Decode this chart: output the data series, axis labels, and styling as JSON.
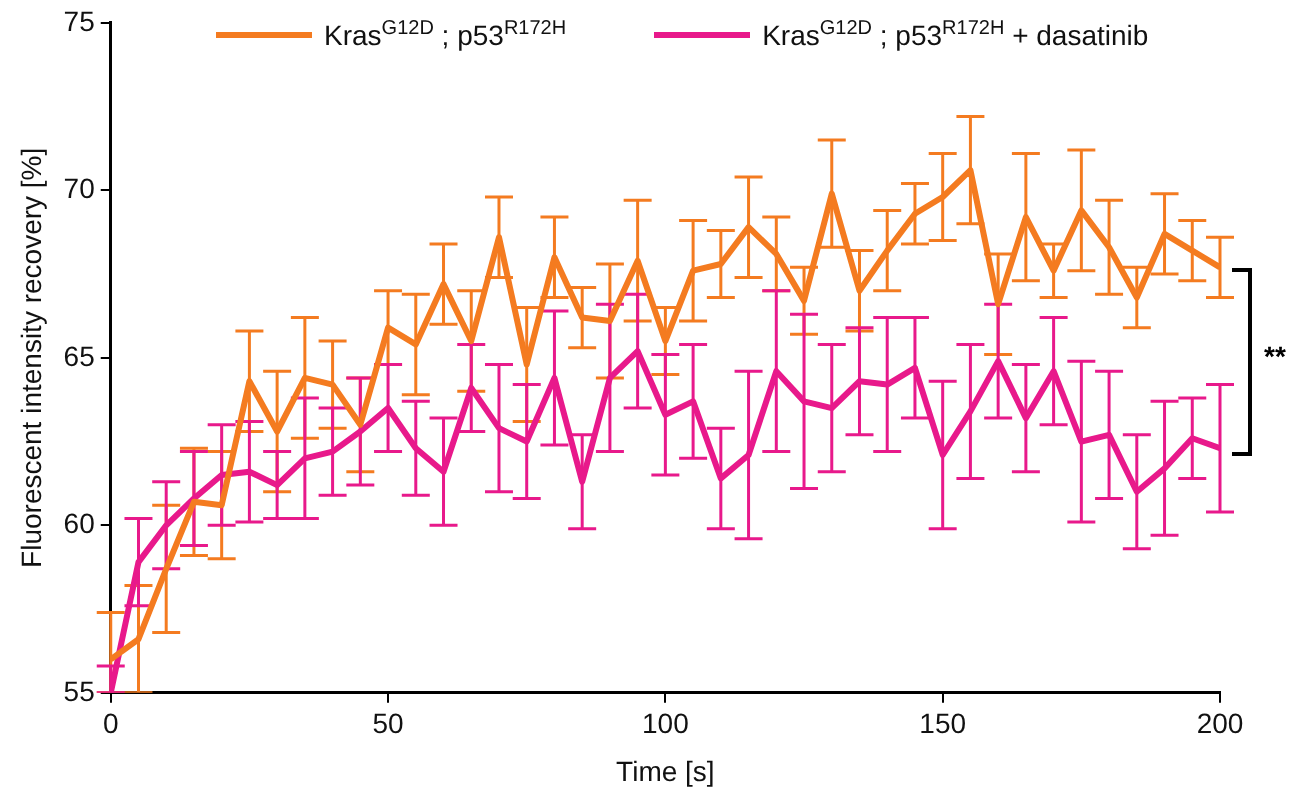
{
  "chart_data": {
    "type": "line",
    "xlabel": "Time [s]",
    "ylabel": "Fluorescent intensity recovery [%]",
    "x": [
      0,
      5,
      10,
      15,
      20,
      25,
      30,
      35,
      40,
      45,
      50,
      55,
      60,
      65,
      70,
      75,
      80,
      85,
      90,
      95,
      100,
      105,
      110,
      115,
      120,
      125,
      130,
      135,
      140,
      145,
      150,
      155,
      160,
      165,
      170,
      175,
      180,
      185,
      190,
      195,
      200
    ],
    "series": [
      {
        "name": "Kras$^{G12D}$ ; p53$^{R172H}$",
        "color": "#f47b20",
        "values": [
          56.0,
          56.6,
          58.7,
          60.7,
          60.6,
          64.3,
          62.8,
          64.4,
          64.2,
          63.0,
          65.9,
          65.4,
          67.2,
          65.5,
          68.6,
          64.8,
          68.0,
          66.2,
          66.1,
          67.9,
          65.5,
          67.6,
          67.8,
          68.9,
          68.1,
          66.7,
          69.9,
          67.0,
          68.2,
          69.3,
          69.8,
          70.6,
          66.6,
          69.2,
          67.6,
          69.4,
          68.3,
          66.8,
          68.7,
          68.2,
          67.7
        ],
        "errors": [
          [
            55,
            57.4
          ],
          1.6,
          1.9,
          1.6,
          1.6,
          1.5,
          1.8,
          1.8,
          1.3,
          1.4,
          1.1,
          1.5,
          1.2,
          1.5,
          1.2,
          1.7,
          1.2,
          0.9,
          1.7,
          1.8,
          1.0,
          1.5,
          1.0,
          1.5,
          1.1,
          1.0,
          1.6,
          1.2,
          1.2,
          0.9,
          1.3,
          1.6,
          1.5,
          1.9,
          0.8,
          1.8,
          1.4,
          0.9,
          1.2,
          0.9,
          0.9
        ]
      },
      {
        "name": "Kras$^{G12D}$ ; p53$^{R172H}$ + dasatinib",
        "color": "#e8198b",
        "values": [
          55.0,
          58.9,
          60.0,
          60.8,
          61.5,
          61.6,
          61.2,
          62.0,
          62.2,
          62.8,
          63.5,
          62.3,
          61.6,
          64.1,
          62.9,
          62.5,
          64.4,
          61.3,
          64.4,
          65.2,
          63.3,
          63.7,
          61.4,
          62.1,
          64.6,
          63.7,
          63.5,
          64.3,
          64.2,
          64.7,
          62.1,
          63.4,
          64.9,
          63.2,
          64.6,
          62.5,
          62.7,
          61.0,
          61.7,
          62.6,
          62.3
        ],
        "errors": [
          [
            55,
            55.8
          ],
          1.3,
          1.3,
          1.4,
          1.5,
          1.5,
          1.0,
          1.8,
          1.3,
          1.6,
          1.3,
          1.4,
          1.6,
          1.3,
          1.9,
          1.7,
          2.0,
          1.4,
          2.2,
          1.7,
          1.8,
          1.7,
          1.5,
          2.5,
          2.4,
          2.6,
          1.9,
          1.6,
          2.0,
          1.5,
          2.2,
          2.0,
          1.7,
          1.6,
          1.6,
          2.4,
          1.9,
          1.7,
          2.0,
          1.2,
          1.9
        ]
      }
    ],
    "xlim": [
      0,
      200
    ],
    "xticks": [
      0,
      50,
      100,
      150,
      200
    ],
    "ylim": [
      55,
      75
    ],
    "yticks": [
      55,
      60,
      65,
      70,
      75
    ],
    "grid": false,
    "legend": "top",
    "marker": "none",
    "line_style": "solid",
    "annotations": [
      "**"
    ]
  }
}
